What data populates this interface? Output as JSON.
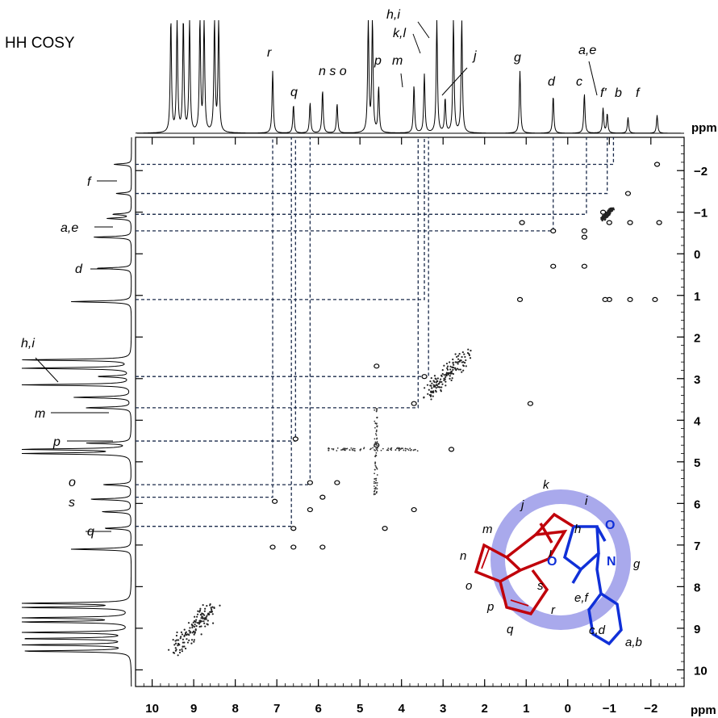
{
  "chart_data": {
    "type": "heatmap",
    "title": "HH COSY",
    "x_unit": "ppm",
    "y_unit": "ppm",
    "xlim": [
      10.4,
      -2.8
    ],
    "ylim": [
      -2.8,
      10.4
    ],
    "x_ticks": [
      "10",
      "9",
      "8",
      "7",
      "6",
      "5",
      "4",
      "3",
      "2",
      "1",
      "0",
      "−1",
      "−2"
    ],
    "y_ticks": [
      "−2",
      "−1",
      "0",
      "1",
      "2",
      "3",
      "4",
      "5",
      "6",
      "7",
      "8",
      "9",
      "10"
    ],
    "top_peak_labels": [
      "r",
      "q",
      "n s o",
      "p",
      "m",
      "k,l",
      "h,i",
      "j",
      "g",
      "d",
      "c",
      "a,e",
      "f'",
      "b",
      "f"
    ],
    "left_peak_labels": [
      "f",
      "a,e",
      "d",
      "h,i",
      "m",
      "p",
      "o",
      "s",
      "q"
    ],
    "spectrum_peaks": [
      {
        "ppm": 9.55,
        "height": 1.0
      },
      {
        "ppm": 9.4,
        "height": 1.0
      },
      {
        "ppm": 9.25,
        "height": 1.0
      },
      {
        "ppm": 9.1,
        "height": 1.0
      },
      {
        "ppm": 8.85,
        "height": 1.0
      },
      {
        "ppm": 8.75,
        "height": 1.0
      },
      {
        "ppm": 8.5,
        "height": 1.0
      },
      {
        "ppm": 8.4,
        "height": 1.0
      },
      {
        "ppm": 7.1,
        "height": 0.55
      },
      {
        "ppm": 6.6,
        "height": 0.25
      },
      {
        "ppm": 6.2,
        "height": 0.27
      },
      {
        "ppm": 5.9,
        "height": 0.38
      },
      {
        "ppm": 5.55,
        "height": 0.26
      },
      {
        "ppm": 4.8,
        "height": 1.0
      },
      {
        "ppm": 4.7,
        "height": 1.0
      },
      {
        "ppm": 4.55,
        "height": 0.4
      },
      {
        "ppm": 3.7,
        "height": 0.42
      },
      {
        "ppm": 3.45,
        "height": 0.52
      },
      {
        "ppm": 3.15,
        "height": 1.0
      },
      {
        "ppm": 2.95,
        "height": 0.3
      },
      {
        "ppm": 2.75,
        "height": 1.0
      },
      {
        "ppm": 2.55,
        "height": 1.0
      },
      {
        "ppm": 1.15,
        "height": 0.55
      },
      {
        "ppm": 0.35,
        "height": 0.33
      },
      {
        "ppm": -0.4,
        "height": 0.35
      },
      {
        "ppm": -0.85,
        "height": 0.22
      },
      {
        "ppm": -0.95,
        "height": 0.17
      },
      {
        "ppm": -1.45,
        "height": 0.14
      },
      {
        "ppm": -2.15,
        "height": 0.16
      }
    ],
    "cross_peaks": [
      {
        "x": -2.15,
        "y": -2.15
      },
      {
        "x": -1.45,
        "y": -1.45
      },
      {
        "x": -0.95,
        "y": -0.95
      },
      {
        "x": -0.85,
        "y": -1.0
      },
      {
        "x": -0.4,
        "y": -0.4
      },
      {
        "x": 0.35,
        "y": -0.55
      },
      {
        "x": -0.4,
        "y": -0.55
      },
      {
        "x": 0.35,
        "y": 0.3
      },
      {
        "x": -0.4,
        "y": 0.3
      },
      {
        "x": 1.15,
        "y": 1.1
      },
      {
        "x": -1.0,
        "y": 1.1
      },
      {
        "x": -0.9,
        "y": 1.1
      },
      {
        "x": -1.5,
        "y": 1.1
      },
      {
        "x": -2.1,
        "y": 1.1
      },
      {
        "x": -1.0,
        "y": -0.75
      },
      {
        "x": -1.5,
        "y": -0.75
      },
      {
        "x": -2.2,
        "y": -0.75
      },
      {
        "x": 1.1,
        "y": -0.75
      },
      {
        "x": 3.45,
        "y": 2.95
      },
      {
        "x": 4.6,
        "y": 2.7
      },
      {
        "x": 3.7,
        "y": 3.6
      },
      {
        "x": 4.6,
        "y": 4.6
      },
      {
        "x": 2.8,
        "y": 4.7
      },
      {
        "x": 6.55,
        "y": 4.45
      },
      {
        "x": 6.2,
        "y": 5.5
      },
      {
        "x": 5.55,
        "y": 5.5
      },
      {
        "x": 5.9,
        "y": 5.85
      },
      {
        "x": 7.05,
        "y": 5.95
      },
      {
        "x": 6.2,
        "y": 6.15
      },
      {
        "x": 3.7,
        "y": 6.15
      },
      {
        "x": 6.6,
        "y": 6.6
      },
      {
        "x": 7.1,
        "y": 7.05
      },
      {
        "x": 6.6,
        "y": 7.05
      },
      {
        "x": 5.9,
        "y": 7.05
      },
      {
        "x": 4.4,
        "y": 6.6
      },
      {
        "x": 0.9,
        "y": 3.6
      }
    ],
    "clusters": [
      {
        "x": 2.9,
        "y": 2.9,
        "spread": 0.45
      },
      {
        "x": 9.0,
        "y": 9.0,
        "spread": 0.5
      },
      {
        "x": -0.95,
        "y": -0.95,
        "spread": 0.12
      }
    ],
    "connectors": [
      {
        "y": -2.15,
        "x": -1.1
      },
      {
        "y": -1.45,
        "x": -0.95
      },
      {
        "y": -0.95,
        "x": -0.45
      },
      {
        "y": -0.55,
        "x": 0.35
      },
      {
        "y": 1.1,
        "x": 3.45
      },
      {
        "y": 2.95,
        "x": 3.35
      },
      {
        "y": 3.7,
        "x": 3.6
      },
      {
        "y": 4.5,
        "x": 6.55
      },
      {
        "y": 5.55,
        "x": 6.2
      },
      {
        "y": 5.85,
        "x": 7.1
      },
      {
        "y": 6.55,
        "x": 6.65
      }
    ]
  },
  "molecule": {
    "labels": [
      "k",
      "j",
      "i",
      "m",
      "l",
      "h",
      "n",
      "g",
      "o",
      "s",
      "p",
      "r",
      "q",
      "e,f",
      "c,d",
      "a,b"
    ],
    "atoms": [
      "O",
      "O",
      "N"
    ],
    "colors": {
      "red": "#c0000a",
      "blue": "#1030d8",
      "ring": "#a9a9ec"
    }
  }
}
